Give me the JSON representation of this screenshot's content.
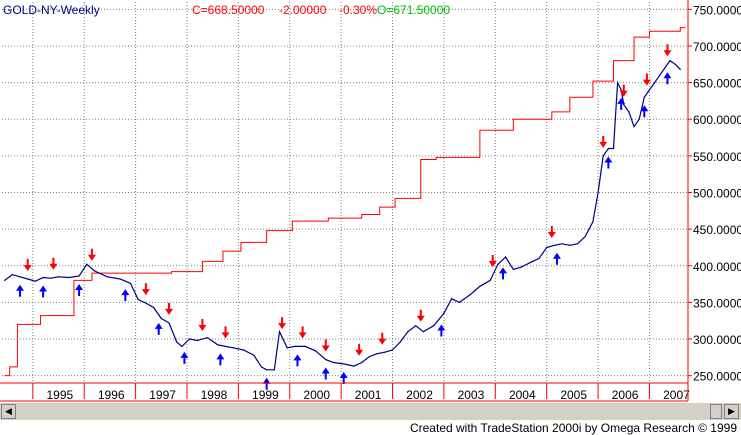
{
  "header": {
    "symbol": "GOLD-NY-Weekly",
    "close": "C=668.50000",
    "change": "-2.00000",
    "pct": "-0.30%",
    "open": "O=671.50000"
  },
  "credit": "Created with TradeStation 2000i by Omega Research © 1999",
  "colors": {
    "price": "#000080",
    "stop": "#ff0000",
    "up_arrow": "#0000ff",
    "down_arrow": "#ff0000",
    "axis": "#ff0000",
    "header_neg": "#ff0000",
    "header_open": "#00c000"
  },
  "chart_data": {
    "type": "line",
    "ylim": [
      240,
      760
    ],
    "xlim": [
      1994.4,
      2007.75
    ],
    "yticks": [
      250,
      300,
      350,
      400,
      450,
      500,
      550,
      600,
      650,
      700,
      750
    ],
    "ytick_labels": [
      "250.0000",
      "300.0000",
      "350.0000",
      "400.0000",
      "450.0000",
      "500.0000",
      "550.0000",
      "600.0000",
      "650.0000",
      "700.0000",
      "750.0000"
    ],
    "xticks": [
      1995,
      1996,
      1997,
      1998,
      1999,
      2000,
      2001,
      2002,
      2003,
      2004,
      2005,
      2006,
      2007
    ],
    "xtick_labels": [
      "1995",
      "1996",
      "1997",
      "1998",
      "1999",
      "2000",
      "2001",
      "2002",
      "2003",
      "2004",
      "2005",
      "2006",
      "2007"
    ],
    "grid": "dotted",
    "series": [
      {
        "type": "line",
        "x": [
          1994.45,
          1994.6,
          1994.75,
          1994.9,
          1995.05,
          1995.2,
          1995.35,
          1995.5,
          1995.7,
          1995.9,
          1996.05,
          1996.2,
          1996.45,
          1996.7,
          1996.9,
          1997.05,
          1997.2,
          1997.35,
          1997.5,
          1997.65,
          1997.8,
          1997.9,
          1998.05,
          1998.2,
          1998.4,
          1998.6,
          1998.75,
          1998.9,
          1999.1,
          1999.3,
          1999.45,
          1999.55,
          1999.7,
          1999.8,
          1999.95,
          2000.1,
          2000.3,
          2000.5,
          2000.7,
          2000.85,
          2001.05,
          2001.25,
          2001.4,
          2001.55,
          2001.7,
          2001.85,
          2002.0,
          2002.15,
          2002.3,
          2002.45,
          2002.6,
          2002.8,
          2003.0,
          2003.15,
          2003.3,
          2003.5,
          2003.7,
          2003.9,
          2004.05,
          2004.2,
          2004.35,
          2004.5,
          2004.7,
          2004.85,
          2005.0,
          2005.15,
          2005.3,
          2005.45,
          2005.6,
          2005.75,
          2005.9,
          2006.0,
          2006.1,
          2006.2,
          2006.3,
          2006.38,
          2006.45,
          2006.5,
          2006.6,
          2006.7,
          2006.8,
          2006.9,
          2007.0,
          2007.1,
          2007.2,
          2007.3,
          2007.4,
          2007.5,
          2007.6
        ],
        "values": [
          380,
          388,
          385,
          382,
          379,
          384,
          383,
          385,
          384,
          386,
          402,
          393,
          385,
          382,
          376,
          354,
          349,
          343,
          328,
          322,
          296,
          290,
          300,
          298,
          302,
          292,
          290,
          288,
          285,
          278,
          262,
          258,
          258,
          310,
          288,
          290,
          290,
          284,
          272,
          268,
          266,
          263,
          268,
          276,
          280,
          282,
          285,
          296,
          310,
          318,
          310,
          318,
          335,
          355,
          350,
          360,
          372,
          380,
          402,
          412,
          395,
          398,
          405,
          410,
          425,
          428,
          430,
          428,
          430,
          440,
          460,
          500,
          550,
          560,
          560,
          650,
          640,
          620,
          610,
          590,
          600,
          630,
          640,
          650,
          660,
          670,
          680,
          675,
          668
        ]
      },
      {
        "type": "step",
        "name": "stop",
        "x": [
          1994.45,
          1994.55,
          1994.7,
          1995.15,
          1995.35,
          1995.8,
          1996.15,
          1997.7,
          1998.3,
          1998.7,
          1999.05,
          1999.55,
          2000.05,
          2000.75,
          2001.4,
          2001.75,
          2002.05,
          2002.55,
          2002.85,
          2003.7,
          2004.35,
          2005.1,
          2005.45,
          2005.9,
          2006.3,
          2006.7,
          2007.0,
          2007.6
        ],
        "values": [
          250,
          262,
          320,
          332,
          332,
          380,
          390,
          392,
          406,
          420,
          432,
          448,
          461,
          465,
          470,
          480,
          492,
          545,
          548,
          585,
          600,
          610,
          630,
          652,
          680,
          712,
          720,
          725
        ]
      }
    ],
    "buy_arrows": [
      1994.75,
      1995.2,
      1995.9,
      1996.8,
      1997.45,
      1997.95,
      1998.65,
      1999.55,
      2000.15,
      2000.7,
      2001.05,
      2002.95,
      2004.15,
      2005.2,
      2006.2,
      2006.45,
      2006.9,
      2007.35
    ],
    "sell_arrows": [
      1994.9,
      1995.4,
      1996.15,
      1997.2,
      1997.65,
      1998.3,
      1998.75,
      1999.85,
      2000.25,
      2000.7,
      2001.35,
      2001.8,
      2002.55,
      2003.95,
      2005.1,
      2006.1,
      2006.5,
      2006.95,
      2007.35
    ]
  }
}
